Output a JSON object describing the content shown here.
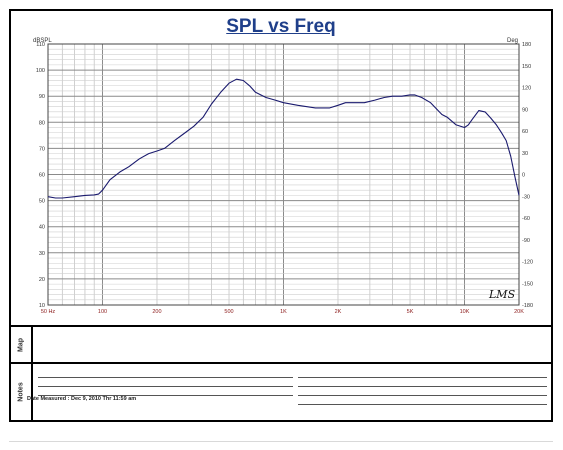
{
  "chart_data": {
    "type": "line",
    "title": "SPL vs Freq",
    "ylabel_left": "dBSPL",
    "ylabel_right": "Deg",
    "xscale": "log",
    "xlim": [
      50,
      20000
    ],
    "ylim_left": [
      10,
      110
    ],
    "ylim_right": [
      -180,
      180
    ],
    "grid": true,
    "x_ticks": [
      {
        "value": 50,
        "label": "50 Hz"
      },
      {
        "value": 100,
        "label": "100"
      },
      {
        "value": 200,
        "label": "200"
      },
      {
        "value": 500,
        "label": "500"
      },
      {
        "value": 1000,
        "label": "1K"
      },
      {
        "value": 2000,
        "label": "2K"
      },
      {
        "value": 5000,
        "label": "5K"
      },
      {
        "value": 10000,
        "label": "10K"
      },
      {
        "value": 20000,
        "label": "20K"
      }
    ],
    "y_ticks_left": [
      10,
      20,
      30,
      40,
      50,
      60,
      70,
      80,
      90,
      100,
      110
    ],
    "y_ticks_right": [
      -180,
      -150,
      -120,
      -90,
      -60,
      -30,
      0,
      30,
      60,
      90,
      120,
      150,
      180
    ],
    "series": [
      {
        "color": "#1a1a6e",
        "x": [
          50,
          55,
          60,
          70,
          80,
          90,
          95,
          100,
          110,
          125,
          140,
          160,
          180,
          200,
          220,
          250,
          280,
          320,
          360,
          400,
          450,
          500,
          550,
          600,
          650,
          700,
          800,
          900,
          1000,
          1200,
          1500,
          1800,
          2000,
          2200,
          2500,
          2800,
          3200,
          3600,
          4000,
          4500,
          5000,
          5300,
          5800,
          6500,
          7500,
          8000,
          9000,
          10000,
          10500,
          11000,
          12000,
          13000,
          14000,
          15000,
          16000,
          17000,
          18000,
          19000,
          20000
        ],
        "y": [
          51.5,
          51,
          51,
          51.5,
          52,
          52.2,
          52.5,
          54,
          58,
          61,
          63,
          66,
          68,
          69,
          70,
          73,
          75.5,
          78.5,
          82,
          87,
          91.5,
          95,
          96.5,
          96,
          94,
          91.5,
          89.5,
          88.5,
          87.5,
          86.5,
          85.5,
          85.5,
          86.5,
          87.5,
          87.5,
          87.5,
          88.5,
          89.5,
          90,
          90,
          90.5,
          90.5,
          89.5,
          87.5,
          83,
          82,
          79,
          78,
          79,
          81,
          84.5,
          84,
          81.5,
          79,
          76,
          73,
          67,
          59,
          52
        ]
      }
    ]
  },
  "map_row": {
    "label": "Map"
  },
  "notes_row": {
    "label": "Notes",
    "date_measured": "Date Measured : Dec 9, 2010 Thr 11:59 am"
  },
  "watermark": "LMS"
}
